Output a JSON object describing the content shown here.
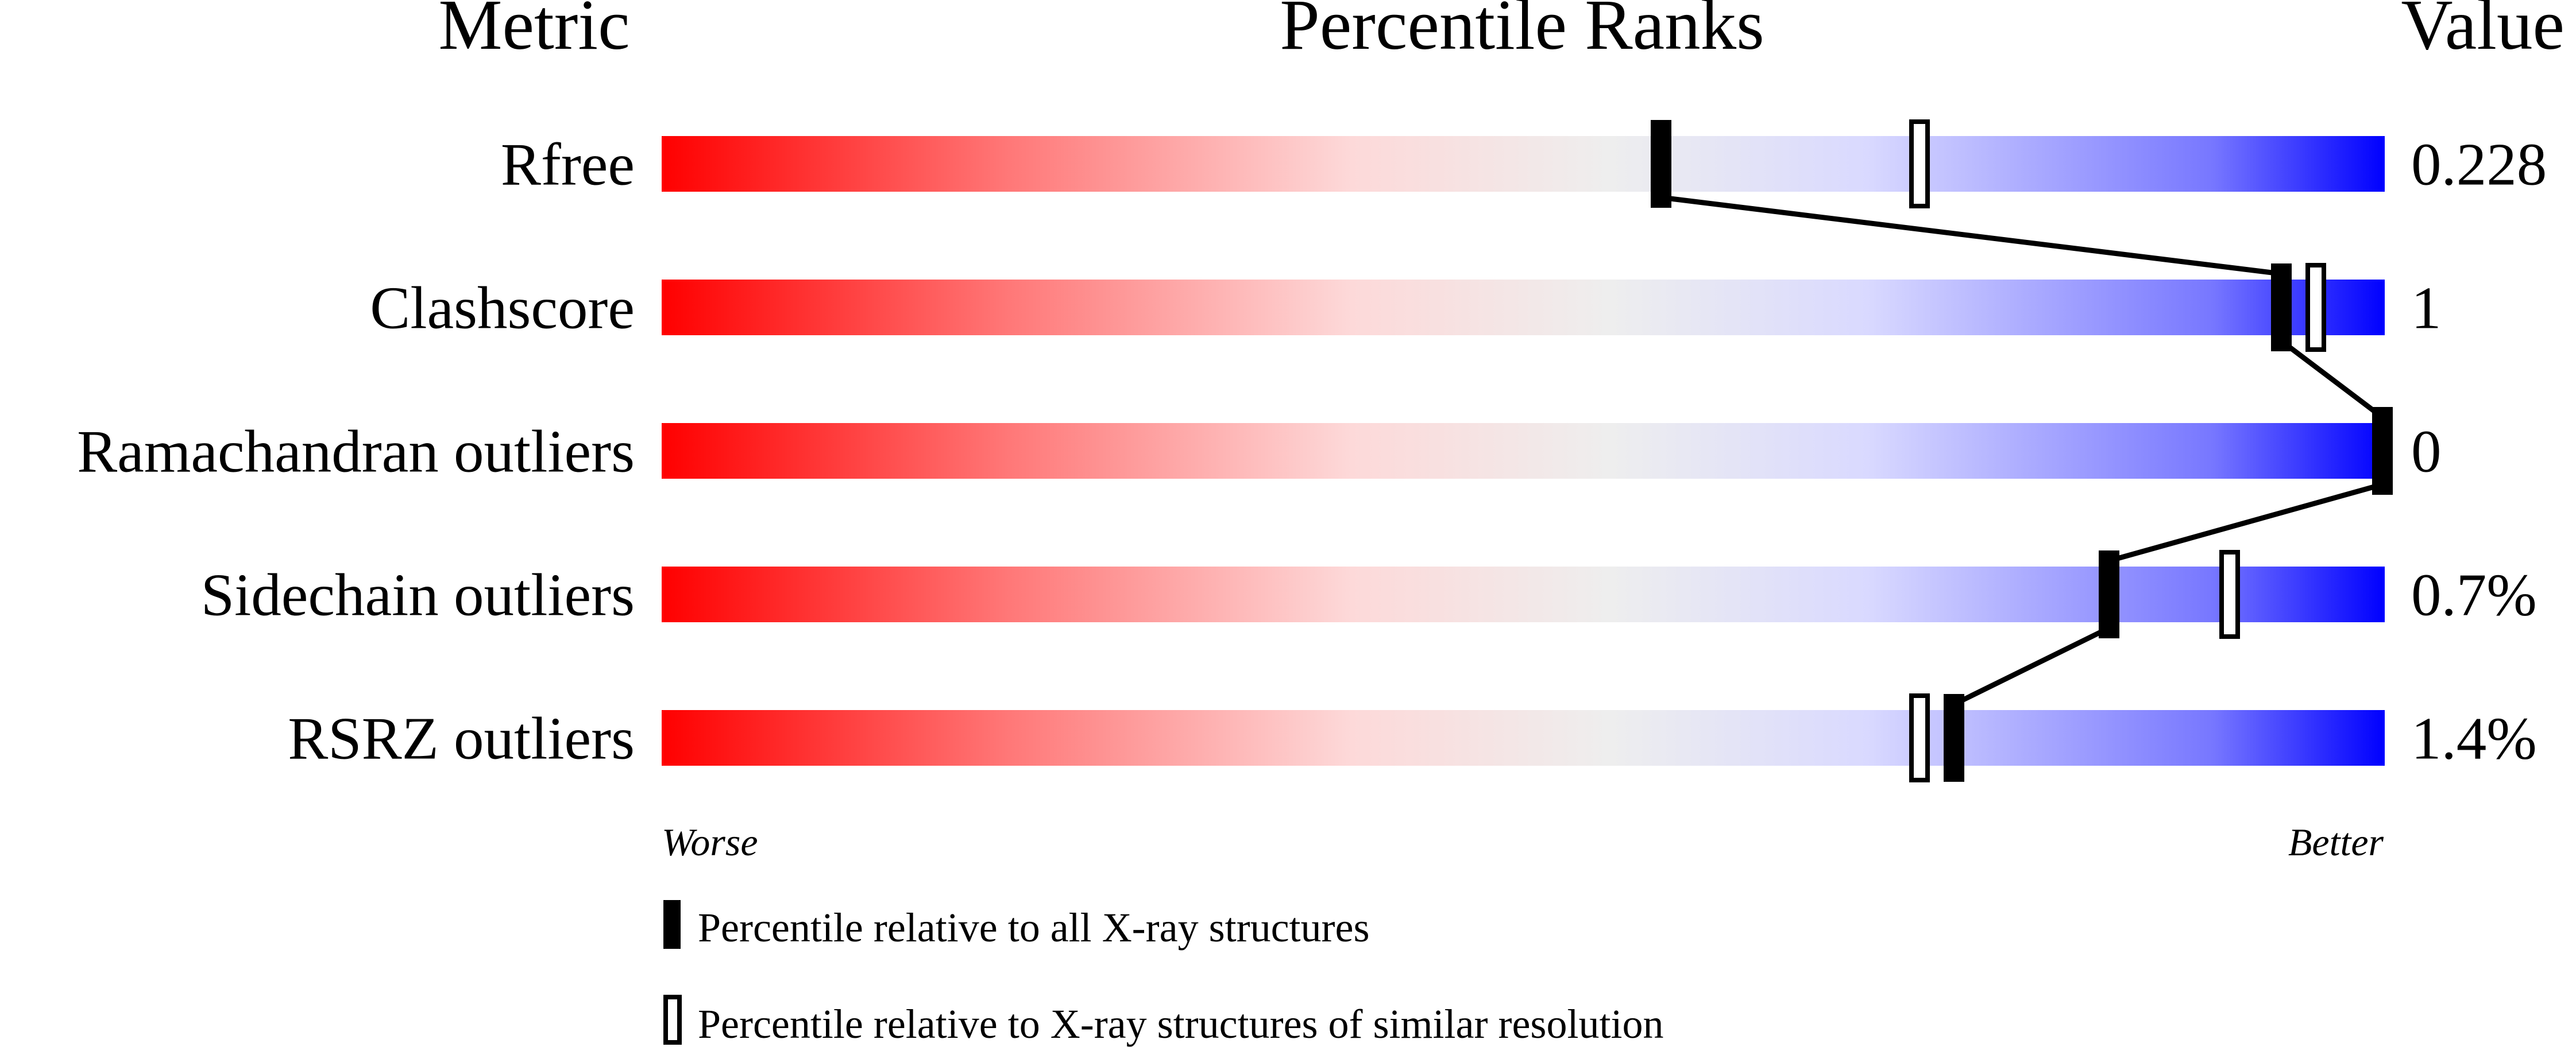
{
  "chart_data": {
    "type": "bar",
    "headers": {
      "metric": "Metric",
      "ranks": "Percentile Ranks",
      "value": "Value"
    },
    "xlim": [
      0,
      100
    ],
    "axis_labels": {
      "left": "Worse",
      "right": "Better"
    },
    "gradient_colors": [
      "#ff0000",
      "#ff7777",
      "#fdd9d9",
      "#eeeeee",
      "#d9d9ff",
      "#7777ff",
      "#0000ff"
    ],
    "rows": [
      {
        "metric": "Rfree",
        "value": "0.228",
        "percentile_all": 58,
        "percentile_similar": 73
      },
      {
        "metric": "Clashscore",
        "value": "1",
        "percentile_all": 94,
        "percentile_similar": 96
      },
      {
        "metric": "Ramachandran outliers",
        "value": "0",
        "percentile_all": 100,
        "percentile_similar": null
      },
      {
        "metric": "Sidechain outliers",
        "value": "0.7%",
        "percentile_all": 84,
        "percentile_similar": 91
      },
      {
        "metric": "RSRZ outliers",
        "value": "1.4%",
        "percentile_all": 75,
        "percentile_similar": 73
      }
    ],
    "legend": [
      {
        "marker": "filled",
        "label": "Percentile relative to all X-ray structures"
      },
      {
        "marker": "open",
        "label": "Percentile relative to X-ray structures of similar resolution"
      }
    ]
  }
}
